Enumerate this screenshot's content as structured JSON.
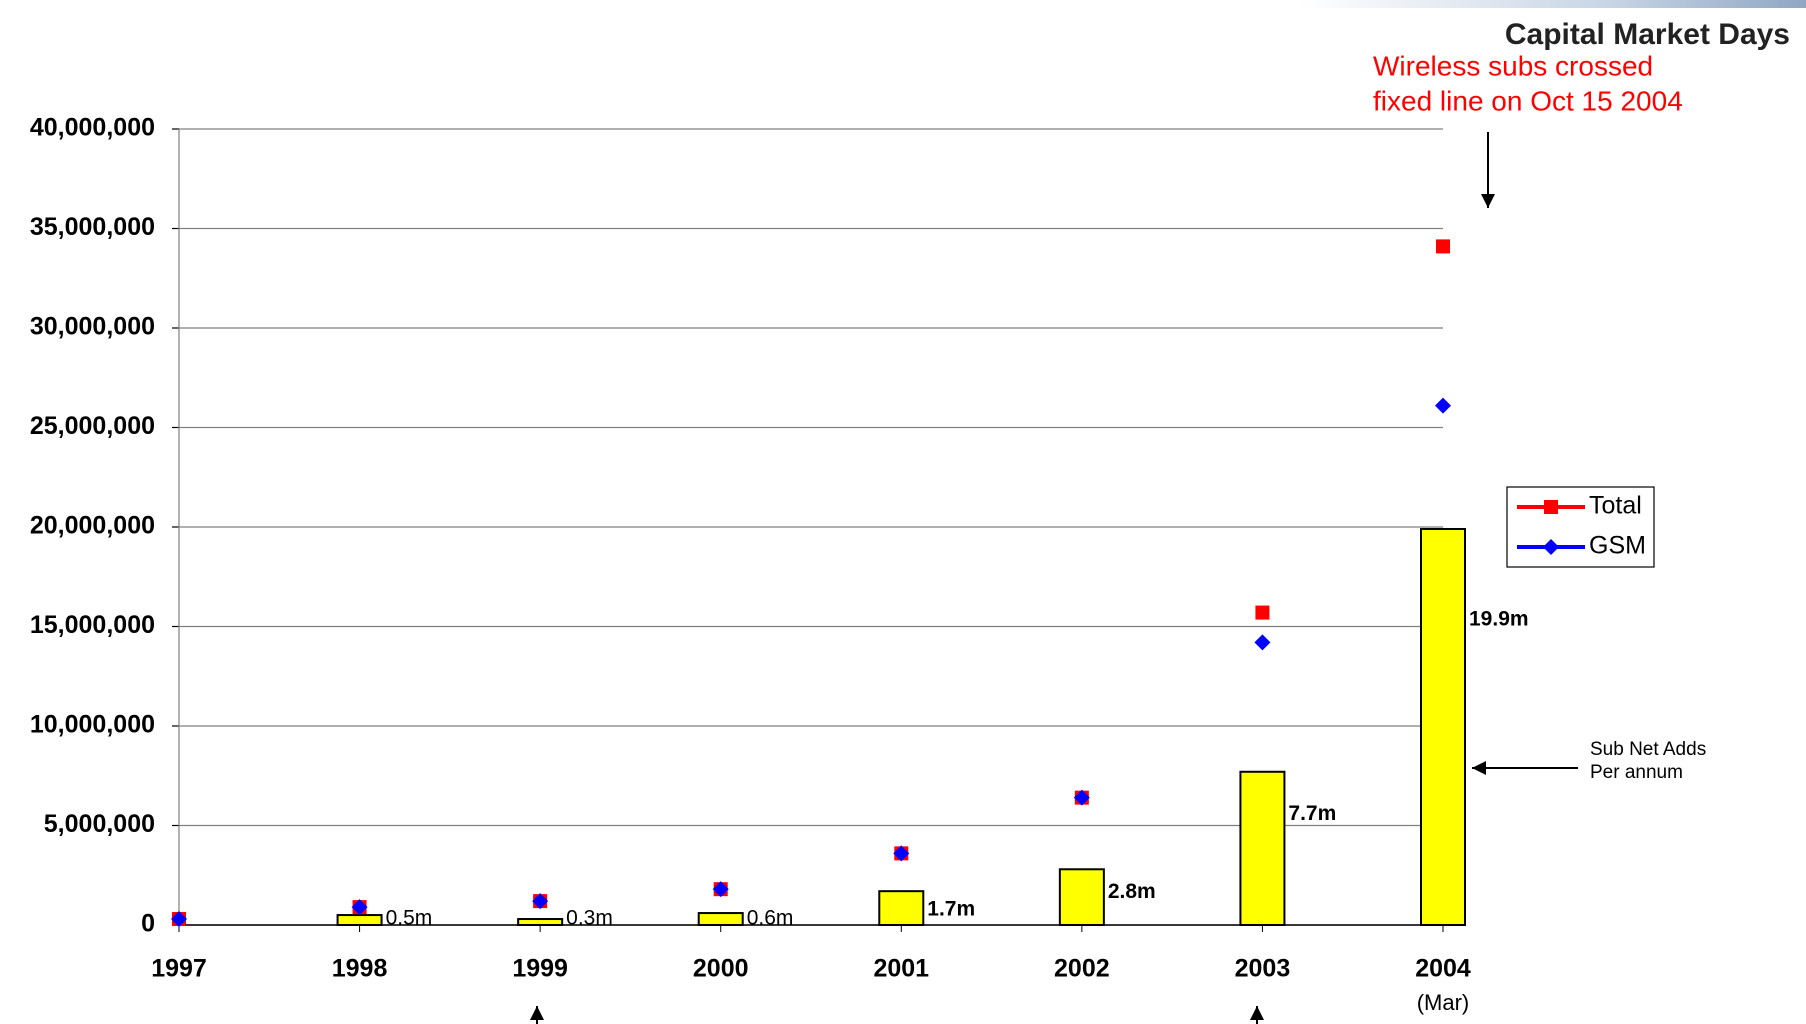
{
  "chart_data": {
    "type": "combo",
    "header": "Capital Market Days",
    "categories": [
      "1997",
      "1998",
      "1999",
      "2000",
      "2001",
      "2002",
      "2003",
      "2004"
    ],
    "category_note": "(Mar)",
    "series": [
      {
        "name": "Total",
        "type": "line",
        "marker": "square",
        "color": "#ff0000",
        "values": [
          300000,
          900000,
          1200000,
          1800000,
          3600000,
          6400000,
          15700000,
          34100000
        ]
      },
      {
        "name": "GSM",
        "type": "line",
        "marker": "diamond",
        "color": "#0000ff",
        "values": [
          300000,
          900000,
          1200000,
          1800000,
          3600000,
          6400000,
          14200000,
          26100000
        ]
      },
      {
        "type": "bar",
        "color": "#ffff00",
        "values": [
          null,
          500000,
          300000,
          600000,
          1700000,
          2800000,
          7700000,
          19900000
        ],
        "value_labels": [
          null,
          "0.5m",
          "0.3m",
          "0.6m",
          "1.7m",
          "2.8m",
          "7.7m",
          "19.9m"
        ]
      }
    ],
    "ylim": [
      0,
      40000000
    ],
    "yticks": [
      0,
      {
        "value": 5000000,
        "label": "5,000,000"
      },
      {
        "value": 10000000,
        "label": "10,000,000"
      },
      {
        "value": 15000000,
        "label": "15,000,000"
      },
      {
        "value": 20000000,
        "label": "20,000,000"
      },
      {
        "value": 25000000,
        "label": "25,000,000"
      },
      {
        "value": 30000000,
        "label": "30,000,000"
      },
      {
        "value": 35000000,
        "label": "35,000,000"
      },
      {
        "value": 40000000,
        "label": "40,000,000"
      }
    ],
    "grid": true,
    "legend": "right",
    "annotations": [
      {
        "lines": [
          "Wireless subs crossed",
          "fixed line on Oct 15 2004"
        ],
        "color": "#ff0000"
      },
      {
        "lines": [
          "Sub Net Adds",
          "Per annum"
        ],
        "color": "#000000"
      }
    ]
  }
}
